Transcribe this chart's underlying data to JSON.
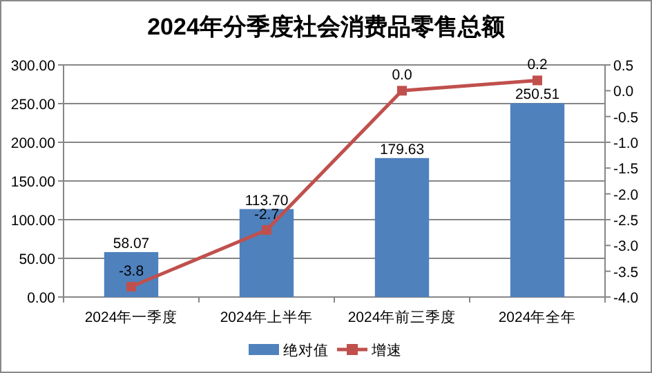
{
  "chart_data": {
    "type": "bar",
    "title": "2024年分季度社会消费品零售总额",
    "categories": [
      "2024年一季度",
      "2024年上半年",
      "2024年前三季度",
      "2024年全年"
    ],
    "series": [
      {
        "name": "绝对值",
        "color": "#4f81bd",
        "values": [
          58.07,
          113.7,
          179.63,
          250.51
        ],
        "value_labels": [
          "58.07",
          "113.70",
          "179.63",
          "250.51"
        ]
      },
      {
        "name": "增速",
        "type": "line",
        "axis": "y2",
        "color": "#c0504d",
        "marker": "square",
        "values": [
          -3.8,
          -2.7,
          0.0,
          0.2
        ],
        "value_labels": [
          "-3.8",
          "-2.7",
          "0.0",
          "0.2"
        ]
      }
    ],
    "ylim": [
      0,
      300
    ],
    "yticks": [
      {
        "value": 0,
        "label": "0.00"
      },
      {
        "value": 50,
        "label": "50.00"
      },
      {
        "value": 100,
        "label": "100.00"
      },
      {
        "value": 150,
        "label": "150.00"
      },
      {
        "value": 200,
        "label": "200.00"
      },
      {
        "value": 250,
        "label": "250.00"
      },
      {
        "value": 300,
        "label": "300.00"
      }
    ],
    "y2lim": [
      -4,
      0.5
    ],
    "y2ticks": [
      {
        "value": -4,
        "label": "-4.0"
      },
      {
        "value": -3.5,
        "label": "-3.5"
      },
      {
        "value": -3,
        "label": "-3.0"
      },
      {
        "value": -2.5,
        "label": "-2.5"
      },
      {
        "value": -2,
        "label": "-2.0"
      },
      {
        "value": -1.5,
        "label": "-1.5"
      },
      {
        "value": -1,
        "label": "-1.0"
      },
      {
        "value": -0.5,
        "label": "-0.5"
      },
      {
        "value": 0,
        "label": "0.0"
      },
      {
        "value": 0.5,
        "label": "0.5"
      }
    ],
    "grid": "y",
    "legend": "bottom"
  }
}
